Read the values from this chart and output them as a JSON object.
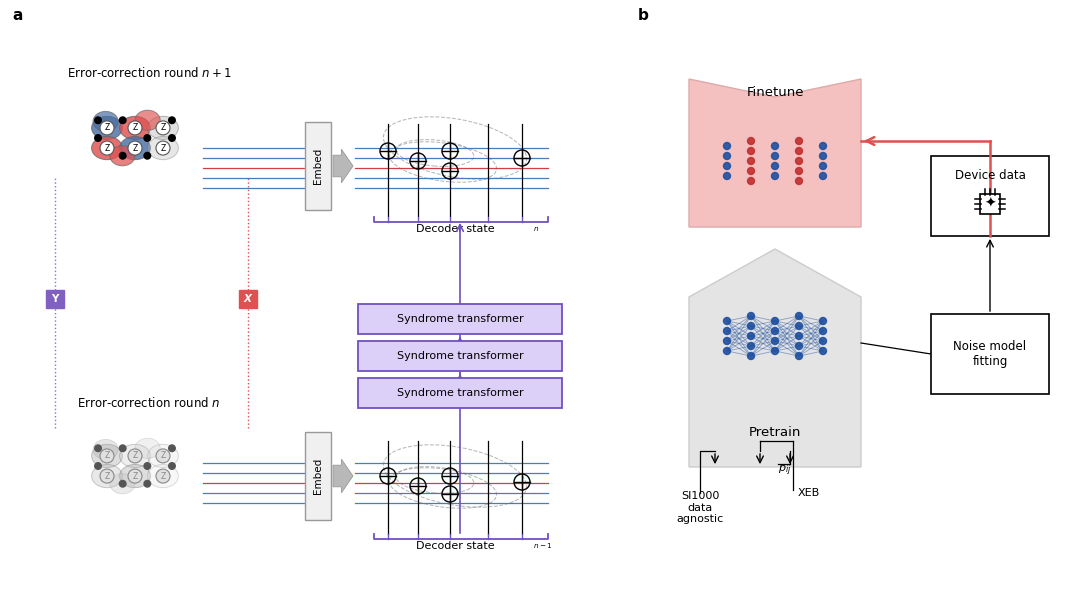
{
  "bg_color": "#ffffff",
  "panel_a": "a",
  "panel_b": "b",
  "title_top": "Error-correction round $n + 1$",
  "title_bottom": "Error-correction round $n$",
  "syndrome_transformer": "Syndrome transformer",
  "embed_label": "Embed",
  "finetune_label": "Finetune",
  "pretrain_label": "Pretrain",
  "device_data_label": "Device data",
  "noise_model_label": "Noise model\nfitting",
  "si1000_label": "SI1000\ndata\nagnostic",
  "xeb_label": "XEB",
  "pij_label": "$p_{ij}$",
  "Y_label": "Y",
  "X_label": "X",
  "color_red": "#e05050",
  "color_blue": "#4a6fa5",
  "color_purple": "#7050c0",
  "color_st_bg": "#ddd0f8",
  "color_st_border": "#7050c0",
  "color_finetune_bg": "#f5c0c0",
  "color_pretrain_bg": "#e4e4e4",
  "color_embed_bg": "#f0f0f0",
  "color_embed_border": "#999999",
  "color_line_blue": "#4a7abf",
  "color_line_red": "#d04040",
  "color_nn_blue": "#2050a0",
  "color_nn_red": "#c03030",
  "color_gray_arrow": "#b8b8b8",
  "color_y_box": "#8060c0",
  "color_x_box": "#e05050"
}
